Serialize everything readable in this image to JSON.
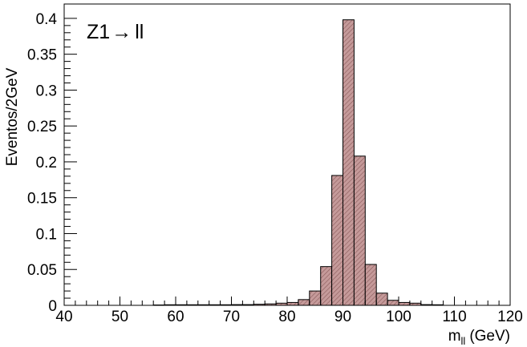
{
  "chart_data": {
    "type": "bar",
    "title": "",
    "annotation": {
      "prefix": "Z1",
      "arrow": "→",
      "suffix": "ll"
    },
    "xlabel": {
      "main": "m",
      "sub": "ll",
      "unit": "(GeV)"
    },
    "ylabel": "Eventos/2GeV",
    "xlim": [
      40,
      120
    ],
    "ylim": [
      0,
      0.42
    ],
    "bin_width": 2,
    "x_ticks": [
      "40",
      "50",
      "60",
      "70",
      "80",
      "90",
      "100",
      "110",
      "120"
    ],
    "y_ticks": [
      "0",
      "0.05",
      "0.1",
      "0.15",
      "0.2",
      "0.25",
      "0.3",
      "0.35",
      "0.4"
    ],
    "bins": [
      {
        "x0": 56,
        "value": 0.0005
      },
      {
        "x0": 58,
        "value": 0.0008
      },
      {
        "x0": 60,
        "value": 0.0008
      },
      {
        "x0": 62,
        "value": 0.0008
      },
      {
        "x0": 64,
        "value": 0.0008
      },
      {
        "x0": 66,
        "value": 0.0008
      },
      {
        "x0": 68,
        "value": 0.0008
      },
      {
        "x0": 70,
        "value": 0.001
      },
      {
        "x0": 72,
        "value": 0.001
      },
      {
        "x0": 74,
        "value": 0.0015
      },
      {
        "x0": 76,
        "value": 0.002
      },
      {
        "x0": 78,
        "value": 0.003
      },
      {
        "x0": 80,
        "value": 0.004
      },
      {
        "x0": 82,
        "value": 0.008
      },
      {
        "x0": 84,
        "value": 0.02
      },
      {
        "x0": 86,
        "value": 0.054
      },
      {
        "x0": 88,
        "value": 0.181
      },
      {
        "x0": 90,
        "value": 0.398
      },
      {
        "x0": 92,
        "value": 0.208
      },
      {
        "x0": 94,
        "value": 0.057
      },
      {
        "x0": 96,
        "value": 0.017
      },
      {
        "x0": 98,
        "value": 0.007
      },
      {
        "x0": 100,
        "value": 0.004
      },
      {
        "x0": 102,
        "value": 0.003
      },
      {
        "x0": 104,
        "value": 0.001
      },
      {
        "x0": 106,
        "value": 0.0008
      }
    ],
    "grid": false,
    "legend": "none",
    "colors": {
      "fill": "#c59a9a",
      "hatch": "#8a5a5a",
      "line": "#000000"
    }
  }
}
